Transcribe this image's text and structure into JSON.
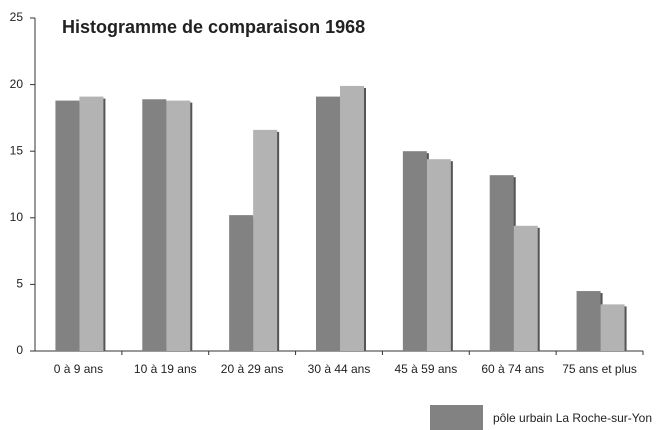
{
  "chart_data": {
    "type": "bar",
    "title": "Histogramme de comparaison 1968",
    "categories": [
      "0 à 9 ans",
      "10 à 19 ans",
      "20 à 29 ans",
      "30 à 44 ans",
      "45 à 59 ans",
      "60 à 74 ans",
      "75 ans et plus"
    ],
    "series": [
      {
        "name": "pôle urbain La Roche-sur-Yon",
        "color": "#828282",
        "values": [
          18.8,
          18.9,
          10.2,
          19.1,
          15.0,
          13.2,
          4.5
        ]
      },
      {
        "color": "#b3b3b3",
        "values": [
          19.1,
          18.8,
          16.6,
          19.9,
          14.4,
          9.4,
          3.5
        ]
      }
    ],
    "ylim": [
      0,
      25
    ],
    "yticks": [
      0,
      5,
      10,
      15,
      20,
      25
    ],
    "grid": false
  }
}
